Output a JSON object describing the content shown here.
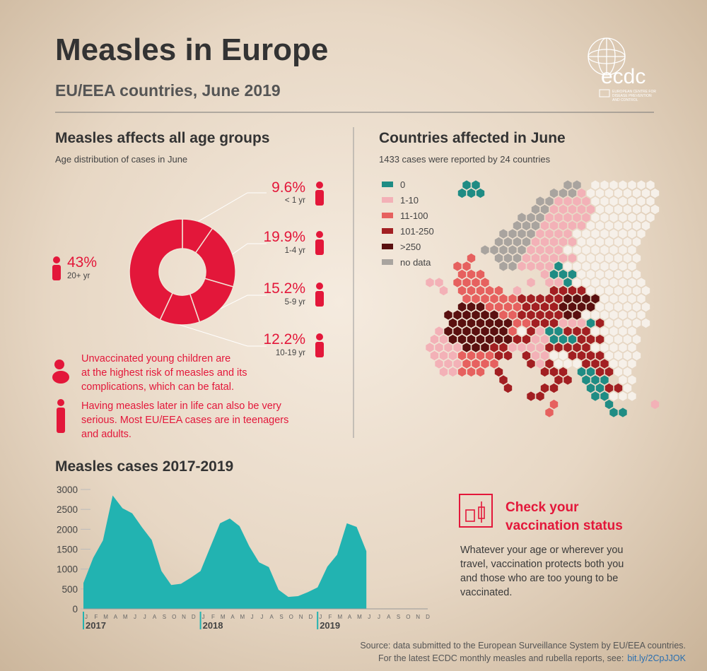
{
  "header": {
    "title": "Measles in Europe",
    "subtitle": "EU/EEA countries, June 2019",
    "logo": "ecdc",
    "logo_caption": [
      "EUROPEAN CENTRE FOR",
      "DISEASE PREVENTION",
      "AND CONTROL"
    ]
  },
  "chart_data": [
    {
      "type": "donut",
      "title": "Measles affects all age groups",
      "subtitle": "Age distribution of cases in June",
      "categories": [
        "< 1 yr",
        "1-4 yr",
        "5-9 yr",
        "10-19 yr",
        "20+ yr"
      ],
      "values": [
        9.6,
        19.9,
        15.2,
        12.2,
        43
      ],
      "value_labels": [
        "9.6%",
        "19.9%",
        "15.2%",
        "12.2%",
        "43%"
      ],
      "color": "#e3173a"
    },
    {
      "type": "area",
      "title": "Measles cases 2017-2019",
      "categories": [
        "J",
        "F",
        "M",
        "A",
        "M",
        "J",
        "J",
        "A",
        "S",
        "O",
        "N",
        "D",
        "J",
        "F",
        "M",
        "A",
        "M",
        "J",
        "J",
        "A",
        "S",
        "O",
        "N",
        "D",
        "J",
        "F",
        "M",
        "A",
        "M",
        "J",
        "J",
        "A",
        "S",
        "O",
        "N",
        "D"
      ],
      "groups": [
        "2017",
        "2018",
        "2019"
      ],
      "values": [
        650,
        1280,
        1720,
        2850,
        2530,
        2400,
        2050,
        1730,
        950,
        600,
        630,
        780,
        950,
        1550,
        2150,
        2270,
        2080,
        1570,
        1170,
        1050,
        480,
        300,
        320,
        420,
        540,
        1060,
        1360,
        2150,
        2060,
        1450,
        null,
        null,
        null,
        null,
        null,
        null
      ],
      "color": "#22b3b1",
      "ylim": [
        0,
        3000
      ],
      "yticks": [
        0,
        500,
        1000,
        1500,
        2000,
        2500,
        3000
      ]
    }
  ],
  "age_notes": [
    [
      "Unvaccinated young children are",
      "at the highest risk of measles and its",
      "complications, which can be fatal."
    ],
    [
      "Having measles later in life can also be very",
      "serious. Most EU/EEA cases are in teenagers",
      "and adults."
    ]
  ],
  "map": {
    "title": "Countries affected in June",
    "subtitle": "1433 cases were reported by 24 countries",
    "legend": [
      {
        "label": "0",
        "color": "#1f8c84"
      },
      {
        "label": "1-10",
        "color": "#f3b1b7"
      },
      {
        "label": "11-100",
        "color": "#e6615f"
      },
      {
        "label": "101-250",
        "color": "#a21f22"
      },
      {
        "label": ">250",
        "color": "#5a1010"
      },
      {
        "label": "no data",
        "color": "#a9a49f"
      }
    ]
  },
  "callout": {
    "title": [
      "Check your",
      "vaccination status"
    ],
    "text": [
      "Whatever your age or wherever you",
      "travel, vaccination protects both you",
      "and those who are too young to be",
      "vaccinated."
    ]
  },
  "source": {
    "lines": [
      "Source: data submitted to the European Surveillance System by EU/EEA countries.",
      "For the latest ECDC monthly measles and rubella reports, see:"
    ],
    "link": "bit.ly/2CpJJOK"
  }
}
